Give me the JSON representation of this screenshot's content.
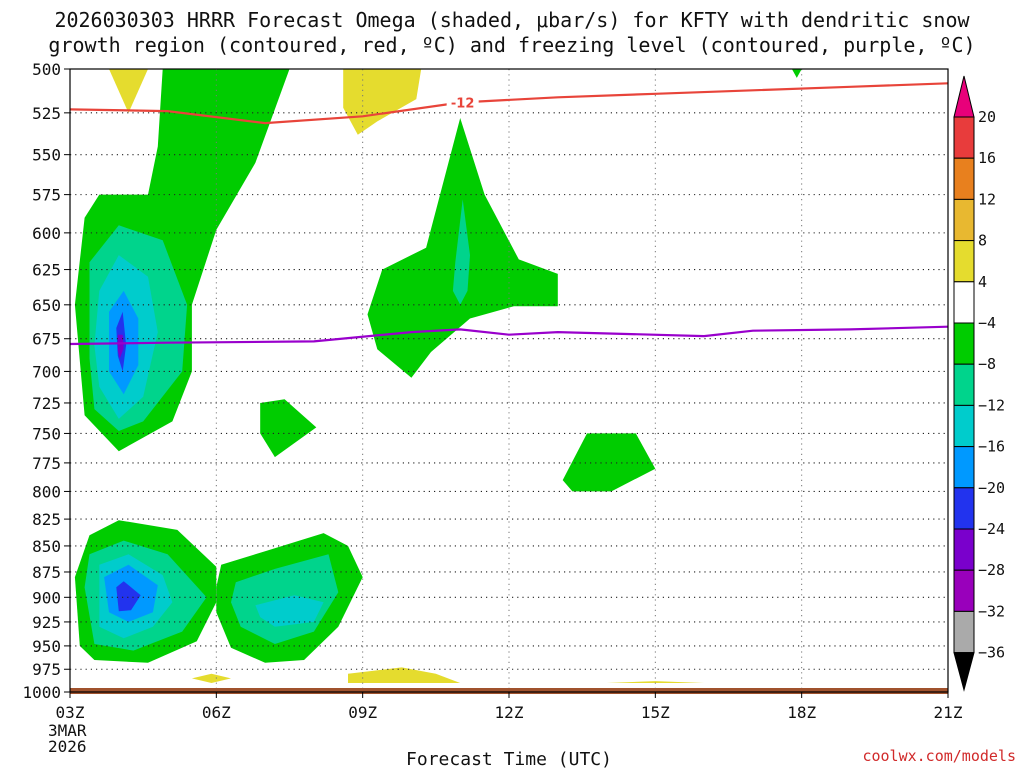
{
  "title": "2026030303 HRRR Forecast Omega (shaded, μbar/s) for KFTY with dendritic snow\ngrowth region (contoured, red, ºC) and freezing level (contoured, purple, ºC)",
  "credit": "coolwx.com/models",
  "colors": {
    "green": "#00cc00",
    "teal_green": "#00d48c",
    "cyan": "#00cccc",
    "blue": "#0099ff",
    "deep_blue": "#2233ee",
    "violet": "#7a00cc",
    "purple": "#9900bb",
    "gray": "#aaaaaa",
    "black": "#000000",
    "yellow": "#e5dc2e",
    "gold": "#e8b830",
    "orange": "#e8801e",
    "red": "#e83c3c",
    "magenta": "#e8007a",
    "red_line": "#e8443a",
    "purple_line": "#9900cc",
    "ground": "#a0522d"
  },
  "chart_data": {
    "type": "time-height contour",
    "xlabel": "Forecast Time (UTC)",
    "x_ticks": [
      "03Z",
      "06Z",
      "09Z",
      "12Z",
      "15Z",
      "18Z",
      "21Z"
    ],
    "x_tick_hours": [
      3,
      6,
      9,
      12,
      15,
      18,
      21
    ],
    "x_start_date": [
      "3MAR",
      "2026"
    ],
    "xlim": [
      3,
      21
    ],
    "y_ticks": [
      500,
      525,
      550,
      575,
      600,
      625,
      650,
      675,
      700,
      725,
      750,
      775,
      800,
      825,
      850,
      875,
      900,
      925,
      950,
      975,
      1000
    ],
    "ylim": [
      500,
      1000
    ],
    "y_scale": "log-pressure",
    "grid": true,
    "colorbar": {
      "levels": [
        "20",
        "16",
        "12",
        "8",
        "4",
        "−4",
        "−8",
        "−12",
        "−16",
        "−20",
        "−24",
        "−28",
        "−32",
        "−36"
      ],
      "fills": [
        "magenta",
        "red",
        "orange",
        "gold",
        "yellow",
        "white",
        "green",
        "teal_green",
        "cyan",
        "blue",
        "deep_blue",
        "violet",
        "purple",
        "gray",
        "black"
      ]
    },
    "dgz_line": {
      "label": "-12",
      "color": "red_line",
      "points": [
        [
          3,
          523
        ],
        [
          5,
          524
        ],
        [
          7,
          531
        ],
        [
          9,
          527
        ],
        [
          11,
          519
        ],
        [
          13,
          516
        ],
        [
          15,
          514
        ],
        [
          17,
          512
        ],
        [
          19,
          510
        ],
        [
          21,
          508
        ]
      ]
    },
    "freezing_line": {
      "color": "purple_line",
      "points": [
        [
          3,
          679
        ],
        [
          5,
          678
        ],
        [
          8,
          677
        ],
        [
          10,
          670
        ],
        [
          11,
          668
        ],
        [
          12,
          672
        ],
        [
          13,
          670
        ],
        [
          16,
          673
        ],
        [
          17,
          669
        ],
        [
          19,
          668
        ],
        [
          21,
          666
        ]
      ]
    },
    "omega_regions": [
      {
        "level": "green",
        "points": [
          [
            4.9,
            500
          ],
          [
            6.5,
            500
          ],
          [
            7.5,
            500
          ],
          [
            6.8,
            555
          ],
          [
            6,
            598
          ],
          [
            5.5,
            650
          ],
          [
            5.5,
            700
          ],
          [
            5.1,
            740
          ],
          [
            4,
            765
          ],
          [
            3.3,
            735
          ],
          [
            3.1,
            650
          ],
          [
            3.3,
            590
          ],
          [
            3.6,
            575
          ],
          [
            4.6,
            575
          ],
          [
            4.8,
            545
          ]
        ]
      },
      {
        "level": "teal_green",
        "points": [
          [
            3.4,
            620
          ],
          [
            4,
            595
          ],
          [
            4.9,
            605
          ],
          [
            5.4,
            650
          ],
          [
            5.3,
            700
          ],
          [
            4.5,
            740
          ],
          [
            4,
            748
          ],
          [
            3.5,
            730
          ],
          [
            3.4,
            690
          ]
        ]
      },
      {
        "level": "cyan",
        "points": [
          [
            3.6,
            640
          ],
          [
            4,
            615
          ],
          [
            4.6,
            630
          ],
          [
            4.8,
            670
          ],
          [
            4.5,
            720
          ],
          [
            4,
            738
          ],
          [
            3.6,
            712
          ],
          [
            3.5,
            680
          ]
        ]
      },
      {
        "level": "blue",
        "points": [
          [
            3.8,
            655
          ],
          [
            4.1,
            640
          ],
          [
            4.4,
            660
          ],
          [
            4.4,
            695
          ],
          [
            4.1,
            718
          ],
          [
            3.8,
            700
          ]
        ]
      },
      {
        "level": "deep_blue",
        "points": [
          [
            3.95,
            667
          ],
          [
            4.08,
            655
          ],
          [
            4.15,
            680
          ],
          [
            4.08,
            700
          ],
          [
            3.98,
            688
          ]
        ]
      },
      {
        "level": "violet",
        "points": [
          [
            3.98,
            672
          ],
          [
            4.08,
            672
          ],
          [
            4.1,
            682
          ],
          [
            4.02,
            690
          ],
          [
            3.98,
            684
          ]
        ]
      },
      {
        "level": "green",
        "points": [
          [
            3.4,
            840
          ],
          [
            4,
            826
          ],
          [
            5.2,
            835
          ],
          [
            6,
            870
          ],
          [
            6,
            905
          ],
          [
            5.6,
            945
          ],
          [
            4.6,
            968
          ],
          [
            3.5,
            965
          ],
          [
            3.2,
            950
          ],
          [
            3.1,
            880
          ]
        ]
      },
      {
        "level": "teal_green",
        "points": [
          [
            3.4,
            858
          ],
          [
            4.1,
            845
          ],
          [
            5,
            858
          ],
          [
            5.8,
            900
          ],
          [
            5.3,
            935
          ],
          [
            4.3,
            955
          ],
          [
            3.5,
            948
          ],
          [
            3.3,
            890
          ]
        ]
      },
      {
        "level": "cyan",
        "points": [
          [
            3.6,
            868
          ],
          [
            4.2,
            858
          ],
          [
            4.9,
            878
          ],
          [
            5.1,
            905
          ],
          [
            4.7,
            930
          ],
          [
            4.1,
            942
          ],
          [
            3.6,
            930
          ]
        ]
      },
      {
        "level": "blue",
        "points": [
          [
            3.7,
            880
          ],
          [
            4.2,
            868
          ],
          [
            4.8,
            888
          ],
          [
            4.7,
            915
          ],
          [
            4.2,
            925
          ],
          [
            3.8,
            915
          ]
        ]
      },
      {
        "level": "deep_blue",
        "points": [
          [
            3.95,
            890
          ],
          [
            4.1,
            884
          ],
          [
            4.45,
            898
          ],
          [
            4.25,
            913
          ],
          [
            4,
            914
          ]
        ]
      },
      {
        "level": "green",
        "points": [
          [
            6.1,
            868
          ],
          [
            7,
            855
          ],
          [
            8.2,
            838
          ],
          [
            8.7,
            850
          ],
          [
            9,
            880
          ],
          [
            8.5,
            930
          ],
          [
            7.8,
            965
          ],
          [
            7,
            968
          ],
          [
            6.3,
            952
          ],
          [
            6,
            915
          ],
          [
            6,
            890
          ]
        ]
      },
      {
        "level": "teal_green",
        "points": [
          [
            6.4,
            885
          ],
          [
            7.2,
            872
          ],
          [
            8.3,
            858
          ],
          [
            8.5,
            895
          ],
          [
            8,
            935
          ],
          [
            7.2,
            948
          ],
          [
            6.5,
            930
          ],
          [
            6.3,
            905
          ]
        ]
      },
      {
        "level": "cyan",
        "points": [
          [
            6.8,
            908
          ],
          [
            7.6,
            898
          ],
          [
            8.2,
            905
          ],
          [
            8,
            925
          ],
          [
            7.2,
            930
          ],
          [
            6.9,
            920
          ]
        ]
      },
      {
        "level": "green",
        "points": [
          [
            6.9,
            725
          ],
          [
            7.4,
            722
          ],
          [
            8.05,
            745
          ],
          [
            7.2,
            770
          ],
          [
            6.9,
            750
          ]
        ]
      },
      {
        "level": "green",
        "points": [
          [
            9.1,
            657
          ],
          [
            9.4,
            625
          ],
          [
            10.3,
            610
          ],
          [
            11,
            528
          ],
          [
            11.5,
            575
          ],
          [
            12.2,
            618
          ],
          [
            13,
            628
          ],
          [
            13,
            651
          ],
          [
            12.1,
            651
          ],
          [
            11.2,
            660
          ],
          [
            10.4,
            685
          ],
          [
            10,
            705
          ],
          [
            9.3,
            683
          ]
        ]
      },
      {
        "level": "teal_green",
        "points": [
          [
            10.9,
            620
          ],
          [
            11.05,
            578
          ],
          [
            11.2,
            615
          ],
          [
            11.15,
            640
          ],
          [
            11,
            650
          ],
          [
            10.85,
            640
          ]
        ]
      },
      {
        "level": "green",
        "points": [
          [
            13.1,
            790
          ],
          [
            13.6,
            750
          ],
          [
            14.6,
            750
          ],
          [
            15,
            780
          ],
          [
            14.1,
            800
          ],
          [
            13.3,
            800
          ]
        ]
      },
      {
        "level": "green",
        "points": [
          [
            17.8,
            500
          ],
          [
            18.0,
            500
          ],
          [
            17.9,
            505
          ]
        ]
      },
      {
        "level": "yellow",
        "points": [
          [
            3.8,
            500
          ],
          [
            4.6,
            500
          ],
          [
            4.2,
            525
          ]
        ]
      },
      {
        "level": "yellow",
        "points": [
          [
            8.6,
            500
          ],
          [
            10.2,
            500
          ],
          [
            10.1,
            517
          ],
          [
            9.3,
            530
          ],
          [
            8.9,
            538
          ],
          [
            8.6,
            522
          ]
        ]
      },
      {
        "level": "yellow",
        "points": [
          [
            8.7,
            980
          ],
          [
            9.8,
            973
          ],
          [
            10.5,
            980
          ],
          [
            11,
            990
          ],
          [
            8.7,
            990
          ]
        ]
      },
      {
        "level": "yellow",
        "points": [
          [
            5.5,
            985
          ],
          [
            5.9,
            980
          ],
          [
            6.3,
            985
          ],
          [
            5.9,
            990
          ]
        ]
      },
      {
        "level": "yellow",
        "points": [
          [
            14,
            990
          ],
          [
            16,
            990
          ],
          [
            15,
            988
          ]
        ]
      }
    ]
  }
}
